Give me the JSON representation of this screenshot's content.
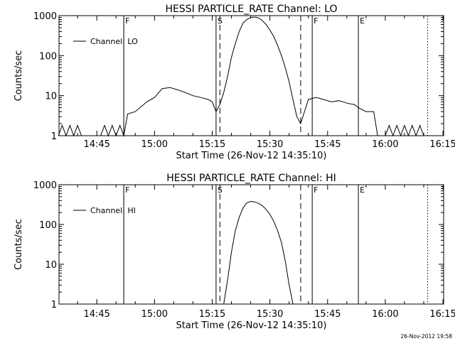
{
  "footer": {
    "timestamp": "26-Nov-2012 19:58"
  },
  "chart_data": [
    {
      "type": "line",
      "title": "HESSI PARTICLE_RATE Channel: LO",
      "xlabel": "Start Time (26-Nov-12 14:35:10)",
      "ylabel": "Counts/sec",
      "yscale": "log",
      "ylim": [
        1,
        1000
      ],
      "xlim_minutes_after_14_35_10": [
        0,
        100
      ],
      "x_ticks": [
        "14:45",
        "15:00",
        "15:15",
        "15:30",
        "15:45",
        "16:00",
        "16:15"
      ],
      "y_ticks": [
        "1",
        "10",
        "100",
        "1000"
      ],
      "legend": {
        "position": "top-left",
        "entries": [
          "Channel: LO"
        ]
      },
      "markers": [
        {
          "label": "F",
          "time": "14:52",
          "style": "solid"
        },
        {
          "label": "",
          "time": "14:52",
          "style": "dotted"
        },
        {
          "label": "S",
          "time": "15:16",
          "style": "solid"
        },
        {
          "label": "",
          "time": "15:17",
          "style": "dashed"
        },
        {
          "label": "",
          "time": "15:38",
          "style": "dashed"
        },
        {
          "label": "F",
          "time": "15:41",
          "style": "solid"
        },
        {
          "label": "E",
          "time": "15:53",
          "style": "solid"
        },
        {
          "label": "",
          "time": "16:11",
          "style": "dotted"
        }
      ],
      "series": [
        {
          "name": "Channel: LO",
          "points": [
            [
              "14:35",
              1
            ],
            [
              "14:36",
              1.8
            ],
            [
              "14:37",
              1
            ],
            [
              "14:38",
              1.8
            ],
            [
              "14:39",
              1
            ],
            [
              "14:40",
              1.8
            ],
            [
              "14:41",
              1
            ],
            [
              "14:42",
              1
            ],
            [
              "14:43",
              1
            ],
            [
              "14:44",
              1
            ],
            [
              "14:45",
              1
            ],
            [
              "14:46",
              1
            ],
            [
              "14:47",
              1.8
            ],
            [
              "14:48",
              1
            ],
            [
              "14:49",
              1.8
            ],
            [
              "14:50",
              1
            ],
            [
              "14:51",
              1.8
            ],
            [
              "14:52",
              1
            ],
            [
              "14:53",
              3.5
            ],
            [
              "14:55",
              4
            ],
            [
              "14:58",
              7
            ],
            [
              "15:00",
              9
            ],
            [
              "15:02",
              15
            ],
            [
              "15:04",
              16
            ],
            [
              "15:06",
              14
            ],
            [
              "15:08",
              12
            ],
            [
              "15:10",
              10
            ],
            [
              "15:12",
              9
            ],
            [
              "15:14",
              8
            ],
            [
              "15:15",
              7
            ],
            [
              "15:16",
              4
            ],
            [
              "15:17",
              6
            ],
            [
              "15:18",
              12
            ],
            [
              "15:19",
              30
            ],
            [
              "15:20",
              90
            ],
            [
              "15:21",
              200
            ],
            [
              "15:22",
              400
            ],
            [
              "15:23",
              650
            ],
            [
              "15:24",
              800
            ],
            [
              "15:25",
              900
            ],
            [
              "15:26",
              920
            ],
            [
              "15:27",
              880
            ],
            [
              "15:28",
              760
            ],
            [
              "15:29",
              600
            ],
            [
              "15:30",
              440
            ],
            [
              "15:31",
              300
            ],
            [
              "15:32",
              180
            ],
            [
              "15:33",
              100
            ],
            [
              "15:34",
              50
            ],
            [
              "15:35",
              22
            ],
            [
              "15:36",
              8
            ],
            [
              "15:37",
              3
            ],
            [
              "15:38",
              2
            ],
            [
              "15:39",
              4
            ],
            [
              "15:40",
              8
            ],
            [
              "15:42",
              9
            ],
            [
              "15:44",
              8
            ],
            [
              "15:46",
              7
            ],
            [
              "15:48",
              7.5
            ],
            [
              "15:50",
              6.5
            ],
            [
              "15:52",
              6
            ],
            [
              "15:53",
              5
            ],
            [
              "15:55",
              4
            ],
            [
              "15:57",
              4
            ],
            [
              "15:58",
              1
            ],
            [
              "16:00",
              1
            ],
            [
              "16:01",
              1.8
            ],
            [
              "16:02",
              1
            ],
            [
              "16:03",
              1.8
            ],
            [
              "16:04",
              1
            ],
            [
              "16:05",
              1.8
            ],
            [
              "16:06",
              1
            ],
            [
              "16:07",
              1.8
            ],
            [
              "16:08",
              1
            ],
            [
              "16:09",
              1.8
            ],
            [
              "16:10",
              1
            ]
          ]
        }
      ]
    },
    {
      "type": "line",
      "title": "HESSI PARTICLE_RATE Channel: HI",
      "xlabel": "Start Time (26-Nov-12 14:35:10)",
      "ylabel": "Counts/sec",
      "yscale": "log",
      "ylim": [
        1,
        1000
      ],
      "xlim_minutes_after_14_35_10": [
        0,
        100
      ],
      "x_ticks": [
        "14:45",
        "15:00",
        "15:15",
        "15:30",
        "15:45",
        "16:00",
        "16:15"
      ],
      "y_ticks": [
        "1",
        "10",
        "100",
        "1000"
      ],
      "legend": {
        "position": "top-left",
        "entries": [
          "Channel: HI"
        ]
      },
      "markers": [
        {
          "label": "F",
          "time": "14:52",
          "style": "solid"
        },
        {
          "label": "",
          "time": "14:52",
          "style": "dotted"
        },
        {
          "label": "S",
          "time": "15:16",
          "style": "solid"
        },
        {
          "label": "",
          "time": "15:17",
          "style": "dashed"
        },
        {
          "label": "",
          "time": "15:38",
          "style": "dashed"
        },
        {
          "label": "F",
          "time": "15:41",
          "style": "solid"
        },
        {
          "label": "E",
          "time": "15:53",
          "style": "solid"
        },
        {
          "label": "",
          "time": "16:11",
          "style": "dotted"
        }
      ],
      "series": [
        {
          "name": "Channel: HI",
          "points": [
            [
              "15:18",
              1
            ],
            [
              "15:19",
              4
            ],
            [
              "15:20",
              20
            ],
            [
              "15:21",
              70
            ],
            [
              "15:22",
              150
            ],
            [
              "15:23",
              260
            ],
            [
              "15:24",
              350
            ],
            [
              "15:25",
              380
            ],
            [
              "15:26",
              370
            ],
            [
              "15:27",
              340
            ],
            [
              "15:28",
              300
            ],
            [
              "15:29",
              240
            ],
            [
              "15:30",
              180
            ],
            [
              "15:31",
              120
            ],
            [
              "15:32",
              70
            ],
            [
              "15:33",
              35
            ],
            [
              "15:34",
              12
            ],
            [
              "15:35",
              3
            ],
            [
              "15:36",
              1
            ]
          ]
        }
      ]
    }
  ]
}
